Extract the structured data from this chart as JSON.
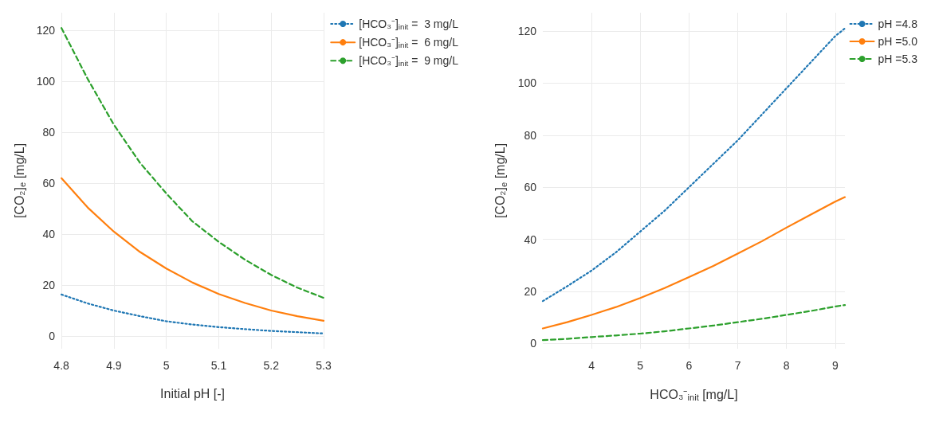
{
  "chart_data": [
    {
      "type": "line",
      "xlabel": "Initial pH [-]",
      "ylabel": "[CO₂]$_{e}$ [mg/L]",
      "x": [
        4.8,
        4.85,
        4.9,
        4.95,
        5,
        5.05,
        5.1,
        5.15,
        5.2,
        5.25,
        5.3
      ],
      "series": [
        {
          "name": "[HCO₃⁻]$_{init}$ =  3 mg/L",
          "color": "#1f77b4",
          "line_style": "dotted",
          "values": [
            16.3,
            12.8,
            10,
            7.8,
            5.8,
            4.5,
            3.5,
            2.7,
            2,
            1.5,
            1
          ]
        },
        {
          "name": "[HCO₃⁻]$_{init}$ =  6 mg/L",
          "color": "#ff7f0e",
          "line_style": "solid",
          "values": [
            62,
            50.5,
            41,
            33,
            26.5,
            21,
            16.5,
            13,
            10,
            7.8,
            6
          ]
        },
        {
          "name": "[HCO₃⁻]$_{init}$ =  9 mg/L",
          "color": "#2ca02c",
          "line_style": "dashed",
          "values": [
            121,
            101,
            83,
            68,
            56,
            45,
            37,
            30,
            24,
            19,
            15
          ]
        }
      ],
      "xlim": [
        4.8,
        5.3
      ],
      "xticks": [
        4.8,
        4.9,
        5,
        5.1,
        5.2,
        5.3
      ],
      "ylim": [
        -5,
        127
      ],
      "yticks": [
        0,
        20,
        40,
        60,
        80,
        100,
        120
      ],
      "grid": true,
      "legend": "top right",
      "marker": "none"
    },
    {
      "type": "line",
      "xlabel": "HCO₃⁻$_{init}$ [mg/L]",
      "ylabel": "[CO₂]$_{e}$ [mg/L]",
      "x": [
        3,
        3.5,
        4,
        4.5,
        5,
        5.5,
        6,
        6.5,
        7,
        7.5,
        8,
        8.5,
        9,
        9.2
      ],
      "series": [
        {
          "name": "pH =4.8",
          "color": "#1f77b4",
          "line_style": "dotted",
          "values": [
            16.3,
            22,
            28,
            35,
            43,
            51,
            60,
            69,
            78,
            88,
            98,
            108,
            118,
            121
          ]
        },
        {
          "name": "pH =5.0",
          "color": "#ff7f0e",
          "line_style": "solid",
          "values": [
            5.8,
            8.2,
            11,
            14,
            17.5,
            21.3,
            25.5,
            29.8,
            34.5,
            39.3,
            44.5,
            49.5,
            54.5,
            56.2
          ]
        },
        {
          "name": "pH =5.3",
          "color": "#2ca02c",
          "line_style": "dashed",
          "values": [
            1.3,
            1.8,
            2.5,
            3.1,
            3.8,
            4.7,
            5.8,
            6.9,
            8.2,
            9.5,
            11,
            12.5,
            14.2,
            14.8
          ]
        }
      ],
      "xlim": [
        3,
        9.2
      ],
      "xticks": [
        4,
        5,
        6,
        7,
        8,
        9
      ],
      "ylim": [
        -2,
        127
      ],
      "yticks": [
        0,
        20,
        40,
        60,
        80,
        100,
        120
      ],
      "grid": true,
      "legend": "top right",
      "marker": "none"
    }
  ]
}
